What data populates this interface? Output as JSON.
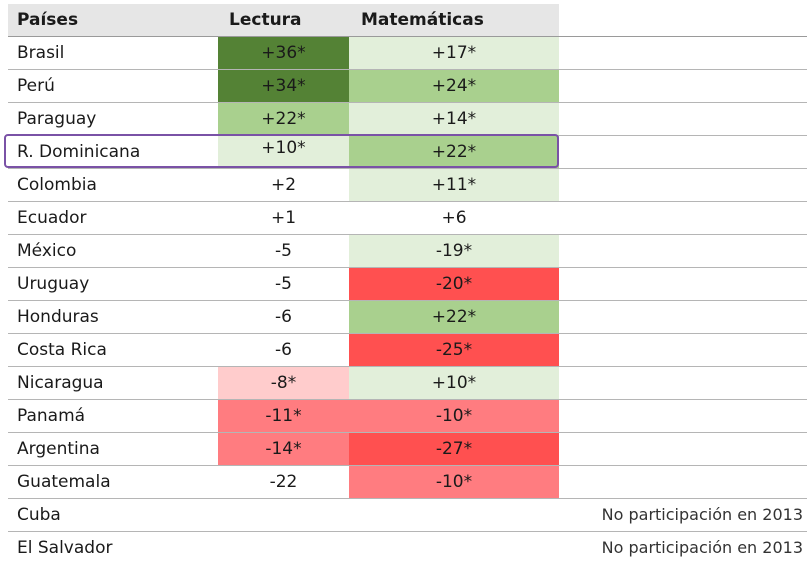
{
  "colors": {
    "dark_green": "#548235",
    "mid_green": "#a9d08e",
    "light_green": "#e2efda",
    "light_pink": "#ffcccc",
    "salmon": "#ff7c80",
    "red": "#ff5050",
    "highlight_border": "#7a52a6",
    "header_bg": "#e6e6e6"
  },
  "table": {
    "headers": {
      "country": "Países",
      "lectura": "Lectura",
      "matematicas": "Matemáticas"
    },
    "rows": [
      {
        "country": "Brasil",
        "lectura": "+36*",
        "lectura_bg": "#548235",
        "matematicas": "+17*",
        "matematicas_bg": "#e2efda"
      },
      {
        "country": "Perú",
        "lectura": "+34*",
        "lectura_bg": "#548235",
        "matematicas": "+24*",
        "matematicas_bg": "#a9d08e"
      },
      {
        "country": "Paraguay",
        "lectura": "+22*",
        "lectura_bg": "#a9d08e",
        "matematicas": "+14*",
        "matematicas_bg": "#e2efda"
      },
      {
        "country": "R. Dominicana",
        "lectura": "+10*",
        "lectura_bg": "#e2efda",
        "matematicas": "+22*",
        "matematicas_bg": "#a9d08e",
        "highlighted": true
      },
      {
        "country": "Colombia",
        "lectura": "+2",
        "lectura_bg": "",
        "matematicas": "+11*",
        "matematicas_bg": "#e2efda"
      },
      {
        "country": "Ecuador",
        "lectura": "+1",
        "lectura_bg": "",
        "matematicas": "+6",
        "matematicas_bg": ""
      },
      {
        "country": "México",
        "lectura": "-5",
        "lectura_bg": "",
        "matematicas": "-19*",
        "matematicas_bg": "#e2efda"
      },
      {
        "country": "Uruguay",
        "lectura": "-5",
        "lectura_bg": "",
        "matematicas": "-20*",
        "matematicas_bg": "#ff5050"
      },
      {
        "country": "Honduras",
        "lectura": "-6",
        "lectura_bg": "",
        "matematicas": "+22*",
        "matematicas_bg": "#a9d08e"
      },
      {
        "country": "Costa Rica",
        "lectura": "-6",
        "lectura_bg": "",
        "matematicas": "-25*",
        "matematicas_bg": "#ff5050"
      },
      {
        "country": "Nicaragua",
        "lectura": "-8*",
        "lectura_bg": "#ffcccc",
        "matematicas": "+10*",
        "matematicas_bg": "#e2efda"
      },
      {
        "country": "Panamá",
        "lectura": "-11*",
        "lectura_bg": "#ff7c80",
        "matematicas": "-10*",
        "matematicas_bg": "#ff7c80"
      },
      {
        "country": "Argentina",
        "lectura": "-14*",
        "lectura_bg": "#ff7c80",
        "matematicas": "-27*",
        "matematicas_bg": "#ff5050"
      },
      {
        "country": "Guatemala",
        "lectura": "-22",
        "lectura_bg": "",
        "matematicas": "-10*",
        "matematicas_bg": "#ff7c80"
      },
      {
        "country": "Cuba",
        "lectura": "",
        "lectura_bg": "",
        "matematicas": "",
        "matematicas_bg": "",
        "note": "No participación en 2013"
      },
      {
        "country": "El Salvador",
        "lectura": "",
        "lectura_bg": "",
        "matematicas": "",
        "matematicas_bg": "",
        "note": "No participación en 2013"
      }
    ]
  }
}
